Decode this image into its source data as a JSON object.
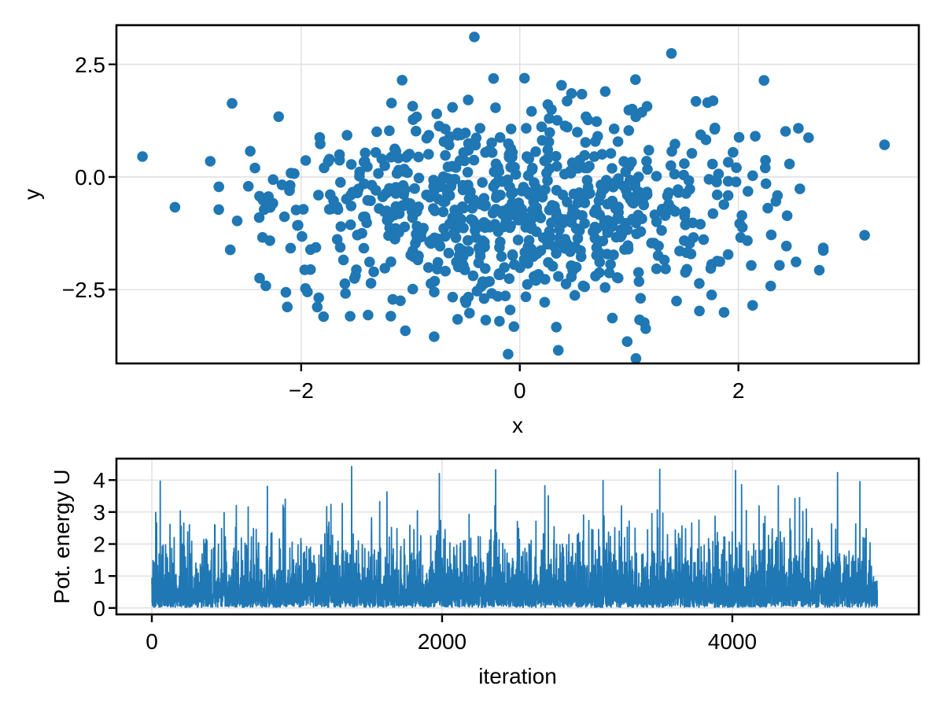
{
  "page": {
    "background_color": "#ffffff"
  },
  "style": {
    "accent_blue": "#1f77b4",
    "grid_color": "#dcdcdc",
    "axis_color": "#000000",
    "text_color": "#000000",
    "background_color": "#ffffff"
  },
  "chart_data": [
    {
      "id": "scatter-samples",
      "type": "scatter",
      "title": "",
      "xlabel": "x",
      "ylabel": "y",
      "xlim": [
        -3.69,
        3.65
      ],
      "ylim": [
        -4.14,
        3.37
      ],
      "xticks": [
        {
          "value": -2,
          "label": "−2"
        },
        {
          "value": 0,
          "label": "0"
        },
        {
          "value": 2,
          "label": "2"
        }
      ],
      "yticks": [
        {
          "value": -2.5,
          "label": "−2.5"
        },
        {
          "value": 0,
          "label": "0.0"
        },
        {
          "value": 2.5,
          "label": "2.5"
        }
      ],
      "grid": true,
      "legend": null,
      "marker_color": "#1f77b4",
      "marker_radius": 6.8,
      "points": {
        "count": 800,
        "x_mean": 0.0,
        "x_std": 1.16,
        "y_mean": -0.75,
        "y_std": 1.13,
        "x_range": [
          -3.55,
          3.4
        ],
        "y_range": [
          -3.9,
          3.05
        ],
        "seed": 11,
        "description": "2D Gaussian sample cloud (MCMC samples)"
      }
    },
    {
      "id": "energy-trace",
      "type": "line",
      "title": "",
      "xlabel": "iteration",
      "ylabel": "Pot. energy U",
      "xlim": [
        -244,
        5285
      ],
      "ylim": [
        -0.2,
        4.67
      ],
      "xticks": [
        {
          "value": 0,
          "label": "0"
        },
        {
          "value": 2000,
          "label": "2000"
        },
        {
          "value": 4000,
          "label": "4000"
        }
      ],
      "yticks": [
        {
          "value": 0,
          "label": "0"
        },
        {
          "value": 1,
          "label": "1"
        },
        {
          "value": 2,
          "label": "2"
        },
        {
          "value": 3,
          "label": "3"
        },
        {
          "value": 4,
          "label": "4"
        }
      ],
      "grid": true,
      "legend": null,
      "line_color": "#1f77b4",
      "line_width": 1.8,
      "series": {
        "count": 5000,
        "min": 0.02,
        "max": 4.45,
        "mean": 0.64,
        "distribution": "exponential",
        "scale": 0.62,
        "offset": 0.02,
        "seed": 5,
        "description": "potential energy per iteration"
      }
    }
  ]
}
